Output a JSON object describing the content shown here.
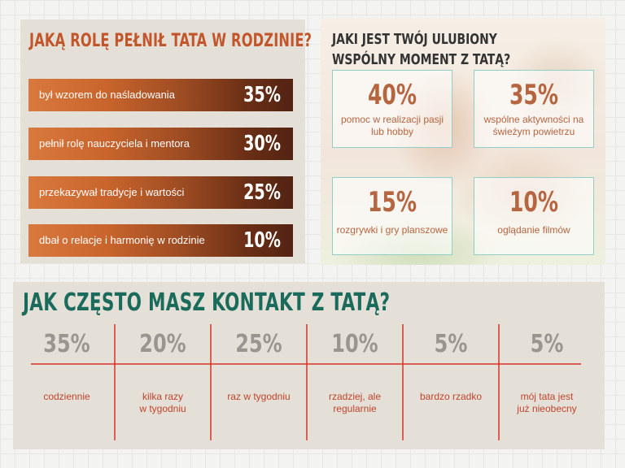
{
  "role_section": {
    "title": "JAKĄ ROLĘ PEŁNIŁ TATA W RODZINIE?",
    "items": [
      {
        "label": "był wzorem do naśladowania",
        "value": "35%"
      },
      {
        "label": "pełnił rolę nauczyciela i mentora",
        "value": "30%"
      },
      {
        "label": "przekazywał tradycje i wartości",
        "value": "25%"
      },
      {
        "label": "dbał o relacje i harmonię w rodzinie",
        "value": "10%"
      }
    ]
  },
  "moment_section": {
    "title": "JAKI JEST TWÓJ ULUBIONY WSPÓLNY MOMENT Z TATĄ?",
    "items": [
      {
        "value": "40%",
        "label": "pomoc w realizacji pasji lub hobby"
      },
      {
        "value": "35%",
        "label": "wspólne aktywności na świeżym powietrzu"
      },
      {
        "value": "15%",
        "label": "rozgrywki i gry planszowe"
      },
      {
        "value": "10%",
        "label": "oglądanie filmów"
      }
    ]
  },
  "contact_section": {
    "title": "JAK CZĘSTO MASZ KONTAKT Z TATĄ?",
    "items": [
      {
        "value": "35%",
        "label": [
          "codziennie"
        ]
      },
      {
        "value": "20%",
        "label": [
          "kilka razy",
          "w tygodniu"
        ]
      },
      {
        "value": "25%",
        "label": [
          "raz w tygodniu"
        ]
      },
      {
        "value": "10%",
        "label": [
          "rzadziej, ale",
          "regularnie"
        ]
      },
      {
        "value": "5%",
        "label": [
          "bardzo rzadko"
        ]
      },
      {
        "value": "5%",
        "label": [
          "mój tata jest",
          "już nieobecny"
        ]
      }
    ]
  },
  "chart_data": [
    {
      "type": "bar",
      "title": "JAKĄ ROLĘ PEŁNIŁ TATA W RODZINIE?",
      "categories": [
        "był wzorem do naśladowania",
        "pełnił rolę nauczyciela i mentora",
        "przekazywał tradycje i wartości",
        "dbał o relacje i harmonię w rodzinie"
      ],
      "values": [
        35,
        30,
        25,
        10
      ]
    },
    {
      "type": "table",
      "title": "JAKI JEST TWÓJ ULUBIONY WSPÓLNY MOMENT Z TATĄ?",
      "categories": [
        "pomoc w realizacji pasji lub hobby",
        "wspólne aktywności na świeżym powietrzu",
        "rozgrywki i gry planszowe",
        "oglądanie filmów"
      ],
      "values": [
        40,
        35,
        15,
        10
      ]
    },
    {
      "type": "table",
      "title": "JAK CZĘSTO MASZ KONTAKT Z TATĄ?",
      "categories": [
        "codziennie",
        "kilka razy w tygodniu",
        "raz w tygodniu",
        "rzadziej, ale regularnie",
        "bardzo rzadko",
        "mój tata jest już nieobecny"
      ],
      "values": [
        35,
        20,
        25,
        10,
        5,
        5
      ]
    }
  ],
  "colors": {
    "accent_orange": "#c2562a",
    "teal_title": "#1a6b5b",
    "red_lines": "#d8322a",
    "box_border": "#8fd0c6"
  }
}
